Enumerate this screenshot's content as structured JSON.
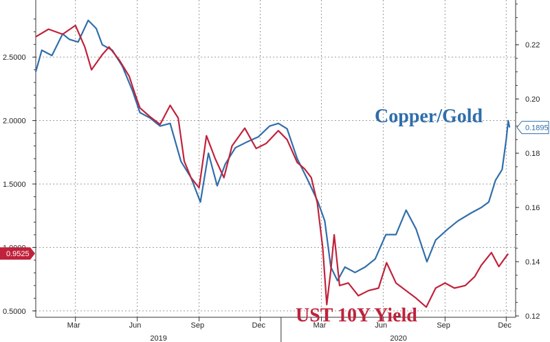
{
  "chart_data": {
    "type": "line",
    "x_axis": {
      "tick_labels": [
        "Mar",
        "Jun",
        "Sep",
        "Dec",
        "Mar",
        "Jun",
        "Sep",
        "Dec"
      ],
      "tick_dates": [
        "2019-03",
        "2019-06",
        "2019-09",
        "2019-12",
        "2020-03",
        "2020-06",
        "2020-09",
        "2020-12"
      ],
      "year_labels": [
        "2019",
        "2020"
      ],
      "range": [
        "2019-01",
        "2020-12"
      ]
    },
    "y_left": {
      "ticks": [
        "0.5000",
        "1.0000",
        "1.5000",
        "2.0000",
        "2.5000"
      ],
      "range": [
        0.45,
        2.95
      ]
    },
    "y_right": {
      "ticks": [
        "0.12",
        "0.14",
        "0.16",
        "0.18",
        "0.20",
        "0.22"
      ],
      "range": [
        0.1195,
        0.2365
      ]
    },
    "grid": true,
    "series": [
      {
        "name": "UST 10Y Yield",
        "axis": "left",
        "color": "#c0223b",
        "last_value": "0.9525",
        "points": [
          [
            "2019-01-01",
            2.66
          ],
          [
            "2019-01-20",
            2.72
          ],
          [
            "2019-02-10",
            2.68
          ],
          [
            "2019-03-01",
            2.75
          ],
          [
            "2019-03-15",
            2.58
          ],
          [
            "2019-03-25",
            2.4
          ],
          [
            "2019-04-10",
            2.52
          ],
          [
            "2019-04-20",
            2.58
          ],
          [
            "2019-05-05",
            2.48
          ],
          [
            "2019-05-20",
            2.35
          ],
          [
            "2019-05-28",
            2.22
          ],
          [
            "2019-06-05",
            2.1
          ],
          [
            "2019-06-20",
            2.03
          ],
          [
            "2019-07-05",
            1.97
          ],
          [
            "2019-07-20",
            2.12
          ],
          [
            "2019-08-01",
            2.02
          ],
          [
            "2019-08-10",
            1.68
          ],
          [
            "2019-08-20",
            1.55
          ],
          [
            "2019-09-01",
            1.47
          ],
          [
            "2019-09-12",
            1.88
          ],
          [
            "2019-09-25",
            1.7
          ],
          [
            "2019-10-08",
            1.55
          ],
          [
            "2019-10-20",
            1.8
          ],
          [
            "2019-11-08",
            1.94
          ],
          [
            "2019-11-25",
            1.78
          ],
          [
            "2019-12-10",
            1.82
          ],
          [
            "2019-12-28",
            1.92
          ],
          [
            "2020-01-10",
            1.85
          ],
          [
            "2020-01-25",
            1.67
          ],
          [
            "2020-02-05",
            1.62
          ],
          [
            "2020-02-15",
            1.55
          ],
          [
            "2020-02-24",
            1.35
          ],
          [
            "2020-03-03",
            1.0
          ],
          [
            "2020-03-09",
            0.55
          ],
          [
            "2020-03-15",
            0.82
          ],
          [
            "2020-03-20",
            1.1
          ],
          [
            "2020-03-28",
            0.7
          ],
          [
            "2020-04-10",
            0.72
          ],
          [
            "2020-04-25",
            0.62
          ],
          [
            "2020-05-10",
            0.66
          ],
          [
            "2020-05-25",
            0.68
          ],
          [
            "2020-06-06",
            0.88
          ],
          [
            "2020-06-20",
            0.72
          ],
          [
            "2020-07-05",
            0.66
          ],
          [
            "2020-07-20",
            0.6
          ],
          [
            "2020-08-04",
            0.53
          ],
          [
            "2020-08-18",
            0.68
          ],
          [
            "2020-09-01",
            0.72
          ],
          [
            "2020-09-15",
            0.68
          ],
          [
            "2020-10-01",
            0.7
          ],
          [
            "2020-10-15",
            0.77
          ],
          [
            "2020-10-25",
            0.86
          ],
          [
            "2020-11-09",
            0.96
          ],
          [
            "2020-11-20",
            0.85
          ],
          [
            "2020-12-01",
            0.93
          ],
          [
            "2020-12-04",
            0.95
          ]
        ]
      },
      {
        "name": "Copper/Gold",
        "axis": "right",
        "color": "#2f6eaa",
        "last_value": "0.1895",
        "points": [
          [
            "2019-01-01",
            0.21
          ],
          [
            "2019-01-10",
            0.218
          ],
          [
            "2019-01-25",
            0.216
          ],
          [
            "2019-02-10",
            0.224
          ],
          [
            "2019-02-20",
            0.222
          ],
          [
            "2019-03-05",
            0.221
          ],
          [
            "2019-03-20",
            0.229
          ],
          [
            "2019-04-01",
            0.226
          ],
          [
            "2019-04-10",
            0.22
          ],
          [
            "2019-04-25",
            0.218
          ],
          [
            "2019-05-10",
            0.212
          ],
          [
            "2019-05-25",
            0.203
          ],
          [
            "2019-06-05",
            0.195
          ],
          [
            "2019-06-20",
            0.193
          ],
          [
            "2019-07-05",
            0.19
          ],
          [
            "2019-07-20",
            0.191
          ],
          [
            "2019-08-05",
            0.177
          ],
          [
            "2019-08-20",
            0.171
          ],
          [
            "2019-09-03",
            0.162
          ],
          [
            "2019-09-15",
            0.18
          ],
          [
            "2019-09-28",
            0.168
          ],
          [
            "2019-10-10",
            0.176
          ],
          [
            "2019-10-25",
            0.182
          ],
          [
            "2019-11-10",
            0.184
          ],
          [
            "2019-11-28",
            0.186
          ],
          [
            "2019-12-15",
            0.19
          ],
          [
            "2019-12-28",
            0.191
          ],
          [
            "2020-01-10",
            0.189
          ],
          [
            "2020-01-25",
            0.178
          ],
          [
            "2020-02-10",
            0.17
          ],
          [
            "2020-02-25",
            0.162
          ],
          [
            "2020-03-06",
            0.155
          ],
          [
            "2020-03-15",
            0.138
          ],
          [
            "2020-03-25",
            0.133
          ],
          [
            "2020-04-05",
            0.138
          ],
          [
            "2020-04-20",
            0.136
          ],
          [
            "2020-05-05",
            0.138
          ],
          [
            "2020-05-20",
            0.141
          ],
          [
            "2020-06-05",
            0.15
          ],
          [
            "2020-06-20",
            0.15
          ],
          [
            "2020-07-05",
            0.159
          ],
          [
            "2020-07-20",
            0.152
          ],
          [
            "2020-08-05",
            0.14
          ],
          [
            "2020-08-18",
            0.148
          ],
          [
            "2020-09-05",
            0.152
          ],
          [
            "2020-09-20",
            0.155
          ],
          [
            "2020-10-10",
            0.158
          ],
          [
            "2020-10-25",
            0.16
          ],
          [
            "2020-11-05",
            0.162
          ],
          [
            "2020-11-15",
            0.17
          ],
          [
            "2020-11-25",
            0.174
          ],
          [
            "2020-12-01",
            0.185
          ],
          [
            "2020-12-04",
            0.192
          ],
          [
            "2020-12-06",
            0.1895
          ]
        ]
      }
    ]
  }
}
